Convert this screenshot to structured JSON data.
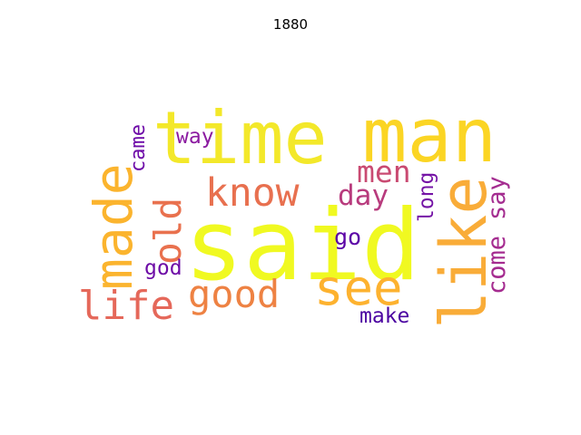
{
  "title": "1880",
  "words": [
    {
      "text": "said",
      "color": "#f0f921",
      "vertical": false
    },
    {
      "text": "time",
      "color": "#f3e82a",
      "vertical": false
    },
    {
      "text": "man",
      "color": "#fbd524",
      "vertical": false
    },
    {
      "text": "like",
      "color": "#f9ac38",
      "vertical": true
    },
    {
      "text": "made",
      "color": "#fbb42e",
      "vertical": true
    },
    {
      "text": "see",
      "color": "#fdb22f",
      "vertical": false
    },
    {
      "text": "life",
      "color": "#e5685a",
      "vertical": false
    },
    {
      "text": "know",
      "color": "#e8704f",
      "vertical": false
    },
    {
      "text": "good",
      "color": "#ee8243",
      "vertical": false
    },
    {
      "text": "old",
      "color": "#e9714e",
      "vertical": true
    },
    {
      "text": "men",
      "color": "#c94a72",
      "vertical": false
    },
    {
      "text": "day",
      "color": "#b83b7d",
      "vertical": false
    },
    {
      "text": "way",
      "color": "#8b1aa0",
      "vertical": false
    },
    {
      "text": "came",
      "color": "#6e0ba8",
      "vertical": true
    },
    {
      "text": "say",
      "color": "#a42d90",
      "vertical": true
    },
    {
      "text": "come",
      "color": "#a52c90",
      "vertical": true
    },
    {
      "text": "long",
      "color": "#7514a6",
      "vertical": true
    },
    {
      "text": "go",
      "color": "#5b01a6",
      "vertical": false
    },
    {
      "text": "god",
      "color": "#6d0ba6",
      "vertical": false
    },
    {
      "text": "make",
      "color": "#4b03a1",
      "vertical": false
    }
  ]
}
